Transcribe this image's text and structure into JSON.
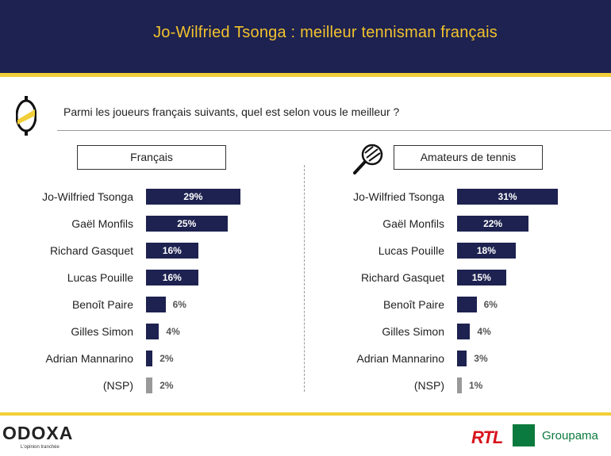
{
  "header": {
    "title": "Jo-Wilfried Tsonga : meilleur tennisman français"
  },
  "question": "Parmi les joueurs français suivants, quel est selon vous le meilleur ?",
  "footer": {
    "odoxa": "ODOXA",
    "odoxa_tagline": "L'opinion tranchée",
    "rtl": "RTL",
    "groupama": "Groupama"
  },
  "colors": {
    "navy": "#1d2250",
    "accent": "#f2cf38",
    "nsp": "#999999"
  },
  "chart_data": [
    {
      "type": "bar",
      "title": "Français",
      "categories": [
        "Jo-Wilfried Tsonga",
        "Gaël Monfils",
        "Richard Gasquet",
        "Lucas Pouille",
        "Benoît Paire",
        "Gilles Simon",
        "Adrian Mannarino",
        "(NSP)"
      ],
      "values": [
        29,
        25,
        16,
        16,
        6,
        4,
        2,
        2
      ],
      "value_labels": [
        "29%",
        "25%",
        "16%",
        "16%",
        "6%",
        "4%",
        "2%",
        "2%"
      ],
      "unit": "%"
    },
    {
      "type": "bar",
      "title": "Amateurs de tennis",
      "categories": [
        "Jo-Wilfried Tsonga",
        "Gaël Monfils",
        "Lucas Pouille",
        "Richard Gasquet",
        "Benoît Paire",
        "Gilles Simon",
        "Adrian Mannarino",
        "(NSP)"
      ],
      "values": [
        31,
        22,
        18,
        15,
        6,
        4,
        3,
        1
      ],
      "value_labels": [
        "31%",
        "22%",
        "18%",
        "15%",
        "6%",
        "4%",
        "3%",
        "1%"
      ],
      "unit": "%"
    }
  ]
}
